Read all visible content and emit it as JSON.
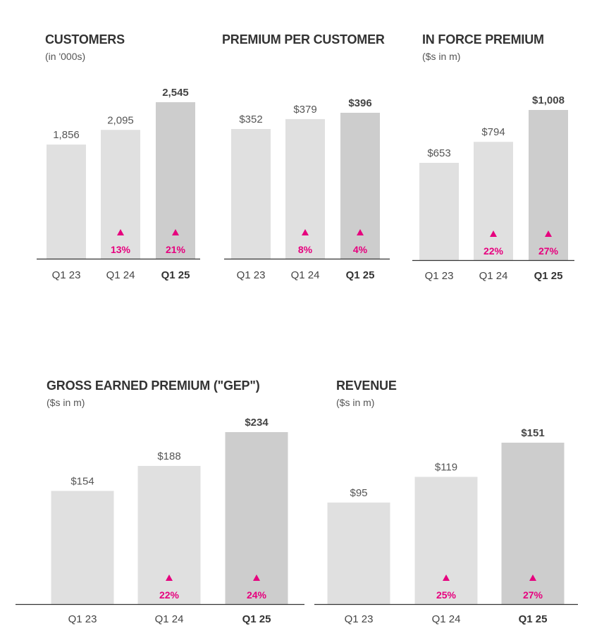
{
  "colors": {
    "bar_light": "#e0e0e0",
    "bar_highlight": "#cdcdcd",
    "growth": "#e6007e",
    "axis": "#333333"
  },
  "chart_data": [
    {
      "type": "bar",
      "title": "CUSTOMERS",
      "subtitle": "(in '000s)",
      "categories": [
        "Q1 23",
        "Q1 24",
        "Q1 25"
      ],
      "values": [
        1856,
        2095,
        2545
      ],
      "value_labels": [
        "1,856",
        "2,095",
        "2,545"
      ],
      "growth_labels": [
        "",
        "13%",
        "21%"
      ],
      "growth_icon": "up-triangle-icon",
      "highlight_index": 2,
      "ylim": [
        0,
        2545
      ]
    },
    {
      "type": "bar",
      "title": "PREMIUM PER CUSTOMER",
      "subtitle": "",
      "categories": [
        "Q1 23",
        "Q1 24",
        "Q1 25"
      ],
      "values": [
        352,
        379,
        396
      ],
      "value_labels": [
        "$352",
        "$379",
        "$396"
      ],
      "growth_labels": [
        "",
        "8%",
        "4%"
      ],
      "growth_icon": "up-triangle-icon",
      "highlight_index": 2,
      "ylim": [
        0,
        396
      ]
    },
    {
      "type": "bar",
      "title": "IN FORCE PREMIUM",
      "subtitle": "($s in m)",
      "categories": [
        "Q1 23",
        "Q1 24",
        "Q1 25"
      ],
      "values": [
        653,
        794,
        1008
      ],
      "value_labels": [
        "$653",
        "$794",
        "$1,008"
      ],
      "growth_labels": [
        "",
        "22%",
        "27%"
      ],
      "growth_icon": "up-triangle-icon",
      "highlight_index": 2,
      "ylim": [
        0,
        1008
      ]
    },
    {
      "type": "bar",
      "title": "GROSS EARNED PREMIUM (\"GEP\")",
      "subtitle": "($s in m)",
      "categories": [
        "Q1 23",
        "Q1 24",
        "Q1 25"
      ],
      "values": [
        154,
        188,
        234
      ],
      "value_labels": [
        "$154",
        "$188",
        "$234"
      ],
      "growth_labels": [
        "",
        "22%",
        "24%"
      ],
      "growth_icon": "up-triangle-icon",
      "highlight_index": 2,
      "ylim": [
        0,
        234
      ]
    },
    {
      "type": "bar",
      "title": "REVENUE",
      "subtitle": "($s in m)",
      "categories": [
        "Q1 23",
        "Q1 24",
        "Q1 25"
      ],
      "values": [
        95,
        119,
        151
      ],
      "value_labels": [
        "$95",
        "$119",
        "$151"
      ],
      "growth_labels": [
        "",
        "25%",
        "27%"
      ],
      "growth_icon": "up-triangle-icon",
      "highlight_index": 2,
      "ylim": [
        0,
        151
      ]
    }
  ]
}
